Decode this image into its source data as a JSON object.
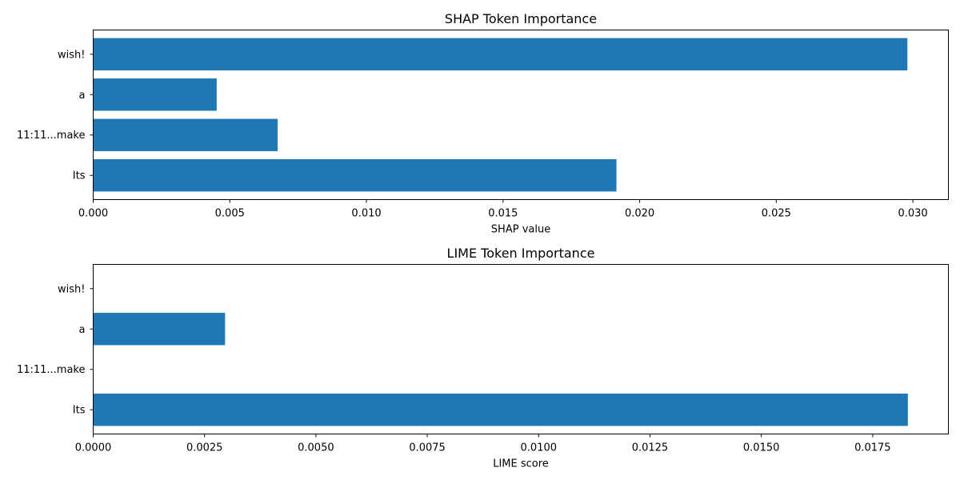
{
  "colors": {
    "bar": "#1f77b4",
    "axis": "#000000",
    "background": "#ffffff"
  },
  "chart_data": [
    {
      "type": "bar",
      "orientation": "horizontal",
      "title": "SHAP Token Importance",
      "xlabel": "SHAP value",
      "ylabel": "",
      "categories": [
        "Its",
        "11:11...make",
        "a",
        "wish!"
      ],
      "values": [
        0.01915,
        0.00675,
        0.00452,
        0.0298
      ],
      "xlim": [
        0,
        0.0313
      ],
      "xticks": [
        0.0,
        0.005,
        0.01,
        0.015,
        0.02,
        0.025,
        0.03
      ],
      "xtick_labels": [
        "0.000",
        "0.005",
        "0.010",
        "0.015",
        "0.020",
        "0.025",
        "0.030"
      ],
      "grid": false,
      "legend": "none"
    },
    {
      "type": "bar",
      "orientation": "horizontal",
      "title": "LIME Token Importance",
      "xlabel": "LIME score",
      "ylabel": "",
      "categories": [
        "Its",
        "11:11...make",
        "a",
        "wish!"
      ],
      "values": [
        0.01829,
        0.0,
        0.00296,
        0.0
      ],
      "xlim": [
        0,
        0.0192
      ],
      "xticks": [
        0.0,
        0.0025,
        0.005,
        0.0075,
        0.01,
        0.0125,
        0.015,
        0.0175
      ],
      "xtick_labels": [
        "0.0000",
        "0.0025",
        "0.0050",
        "0.0075",
        "0.0100",
        "0.0125",
        "0.0150",
        "0.0175"
      ],
      "grid": false,
      "legend": "none"
    }
  ]
}
